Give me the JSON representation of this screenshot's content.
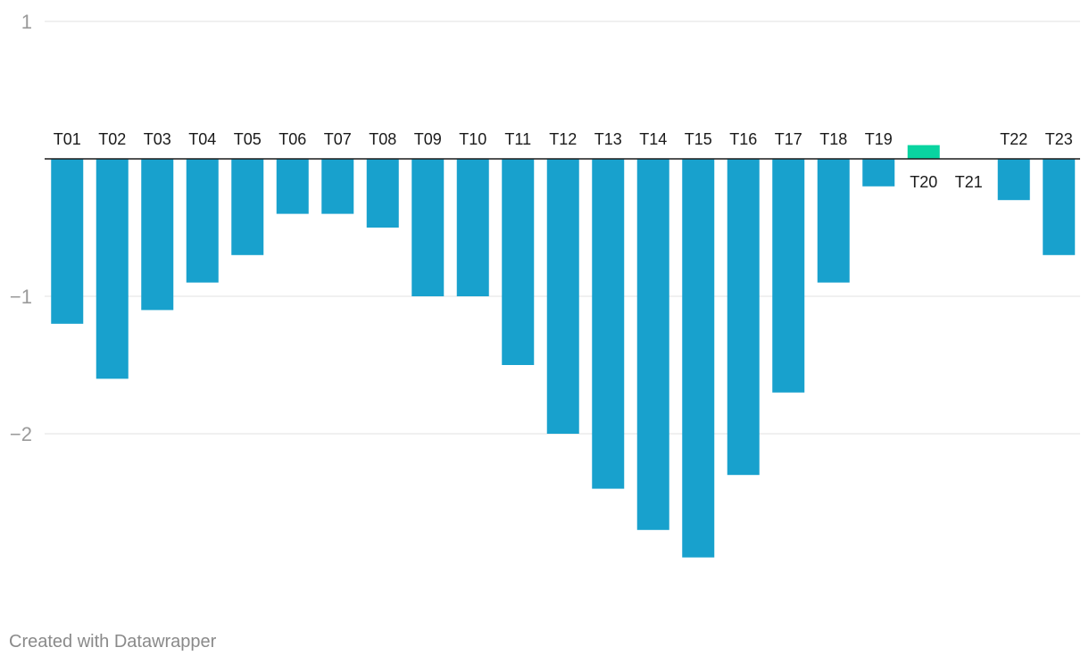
{
  "chart_data": {
    "type": "bar",
    "title": "",
    "xlabel": "",
    "ylabel": "",
    "categories": [
      "T01",
      "T02",
      "T03",
      "T04",
      "T05",
      "T06",
      "T07",
      "T08",
      "T09",
      "T10",
      "T11",
      "T12",
      "T13",
      "T14",
      "T15",
      "T16",
      "T17",
      "T18",
      "T19",
      "T20",
      "T21",
      "T22",
      "T23"
    ],
    "values": [
      -1.2,
      -1.6,
      -1.1,
      -0.9,
      -0.7,
      -0.4,
      -0.4,
      -0.5,
      -1.0,
      -1.0,
      -1.5,
      -2.0,
      -2.4,
      -2.7,
      -2.9,
      -2.3,
      -1.7,
      -0.9,
      -0.2,
      0.1,
      0,
      -0.3,
      -0.7
    ],
    "ylim": [
      -3,
      1
    ],
    "yticks": [
      {
        "value": 1,
        "label": "1"
      },
      {
        "value": -1,
        "label": "−1"
      },
      {
        "value": -2,
        "label": "−2"
      }
    ],
    "grid": true,
    "colors": {
      "negative": "#18a1cd",
      "positive": "#09d4a0",
      "grid": "#e2e2e2",
      "zero_line": "#1a1a1a"
    }
  },
  "footer": {
    "credit": "Created with Datawrapper"
  }
}
